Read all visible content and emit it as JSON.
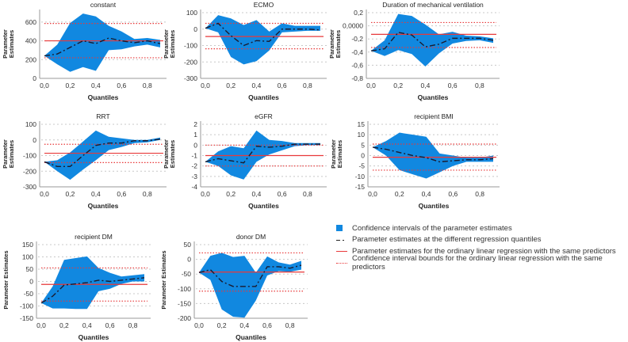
{
  "colors": {
    "ci_fill": "#1188e0",
    "estimate": "#1a1a2e",
    "ols": "#e8393a",
    "grid": "#c8c8c8"
  },
  "legend": [
    {
      "label": "Confidence intervals of the parameter estimates",
      "style": "fill"
    },
    {
      "label": "Parameter estimates at the different regression quantiles",
      "style": "dash"
    },
    {
      "label": "Parameter estimates for the ordinary linear regression with the same predictors",
      "style": "solid"
    },
    {
      "label": "Confidence interval bounds for the ordinary linear regression with the same predictors",
      "style": "dot"
    }
  ],
  "chart_data": [
    {
      "type": "area",
      "title": "constant",
      "xlabel": "Quantiles",
      "ylabel": "Parameter Estimates",
      "x": [
        0,
        0.1,
        0.2,
        0.3,
        0.4,
        0.5,
        0.6,
        0.7,
        0.8,
        0.9
      ],
      "xticks": [
        0,
        0.2,
        0.4,
        0.6,
        0.8
      ],
      "xtick_labels": [
        "0,0",
        "0,2",
        "0,4",
        "0,6",
        "0,8"
      ],
      "ylim": [
        0,
        700
      ],
      "yticks": [
        0,
        200,
        400,
        600
      ],
      "ytick_labels": [
        "0",
        "200",
        "400",
        "600"
      ],
      "estimate": [
        240,
        260,
        330,
        400,
        370,
        430,
        400,
        380,
        400,
        370
      ],
      "ci_upper": [
        240,
        360,
        590,
        690,
        660,
        560,
        500,
        420,
        430,
        410
      ],
      "ci_lower": [
        240,
        150,
        70,
        120,
        80,
        300,
        310,
        340,
        360,
        330
      ],
      "ols": 400,
      "ols_ci": [
        220,
        585
      ]
    },
    {
      "type": "area",
      "title": "ECMO",
      "xlabel": "Quantiles",
      "ylabel": "Parameter Estimates",
      "x": [
        0,
        0.1,
        0.2,
        0.3,
        0.4,
        0.5,
        0.6,
        0.7,
        0.8,
        0.9
      ],
      "xticks": [
        0,
        0.2,
        0.4,
        0.6,
        0.8
      ],
      "xtick_labels": [
        "0,0",
        "0,2",
        "0,4",
        "0,6",
        "0,8"
      ],
      "ylim": [
        -300,
        100
      ],
      "yticks": [
        -300,
        -200,
        -100,
        0,
        100
      ],
      "ytick_labels": [
        "-300",
        "-200",
        "-100",
        "0",
        "100"
      ],
      "estimate": [
        5,
        35,
        -40,
        -100,
        -70,
        -75,
        0,
        0,
        0,
        -5
      ],
      "ci_upper": [
        5,
        85,
        65,
        25,
        55,
        -15,
        35,
        20,
        20,
        20
      ],
      "ci_lower": [
        5,
        -20,
        -170,
        -215,
        -195,
        -130,
        -20,
        -15,
        -10,
        -10
      ],
      "ols": -45,
      "ols_ci": [
        -120,
        35
      ]
    },
    {
      "type": "area",
      "title": "Duration of mechanical ventilation",
      "xlabel": "Quantiles",
      "ylabel": "Parameter Estimates",
      "x": [
        0,
        0.1,
        0.2,
        0.3,
        0.4,
        0.5,
        0.6,
        0.7,
        0.8,
        0.9
      ],
      "xticks": [
        0,
        0.2,
        0.4,
        0.6,
        0.8
      ],
      "xtick_labels": [
        "0,0",
        "0,2",
        "0,4",
        "0,6",
        "0,8"
      ],
      "ylim": [
        -0.8,
        0.2
      ],
      "yticks": [
        -0.8,
        -0.6,
        -0.4,
        -0.2,
        0,
        0.2
      ],
      "ytick_labels": [
        "-0,8",
        "-0,6",
        "-0,4",
        "-0,2",
        "0,0000",
        "0,2"
      ],
      "estimate": [
        -0.38,
        -0.35,
        -0.1,
        -0.14,
        -0.32,
        -0.28,
        -0.19,
        -0.19,
        -0.19,
        -0.22
      ],
      "ci_upper": [
        -0.38,
        -0.22,
        0.18,
        0.15,
        0.02,
        -0.13,
        -0.09,
        -0.15,
        -0.16,
        -0.19
      ],
      "ci_lower": [
        -0.38,
        -0.46,
        -0.37,
        -0.43,
        -0.62,
        -0.42,
        -0.27,
        -0.23,
        -0.22,
        -0.26
      ],
      "ols": -0.13,
      "ols_ci": [
        -0.33,
        0.05
      ]
    },
    {
      "type": "area",
      "title": "RRT",
      "xlabel": "Quantiles",
      "ylabel": "Parameter Estimates",
      "x": [
        0,
        0.1,
        0.2,
        0.3,
        0.4,
        0.5,
        0.6,
        0.7,
        0.8,
        0.9
      ],
      "xticks": [
        0,
        0.2,
        0.4,
        0.6,
        0.8
      ],
      "xtick_labels": [
        "0,0",
        "0,2",
        "0,4",
        "0,6",
        "0,8"
      ],
      "ylim": [
        -300,
        100
      ],
      "yticks": [
        -300,
        -200,
        -100,
        0,
        100
      ],
      "ytick_labels": [
        "-300",
        "-200",
        "-100",
        "0",
        "100"
      ],
      "estimate": [
        -140,
        -170,
        -170,
        -100,
        -35,
        -20,
        -20,
        -5,
        -5,
        5
      ],
      "ci_upper": [
        -140,
        -130,
        -80,
        -10,
        60,
        20,
        10,
        0,
        0,
        15
      ],
      "ci_lower": [
        -140,
        -200,
        -255,
        -190,
        -130,
        -65,
        -45,
        -20,
        -15,
        0
      ],
      "ols": -85,
      "ols_ci": [
        -145,
        -28
      ]
    },
    {
      "type": "area",
      "title": "eGFR",
      "xlabel": "Quantiles",
      "ylabel": "Parameter Estimates",
      "x": [
        0,
        0.1,
        0.2,
        0.3,
        0.4,
        0.5,
        0.6,
        0.7,
        0.8,
        0.9
      ],
      "xticks": [
        0,
        0.2,
        0.4,
        0.6,
        0.8
      ],
      "xtick_labels": [
        "0,0",
        "0,2",
        "0,4",
        "0,6",
        "0,8"
      ],
      "ylim": [
        -4,
        2
      ],
      "yticks": [
        -4,
        -3,
        -2,
        -1,
        0,
        1,
        2
      ],
      "ytick_labels": [
        "-4",
        "-3",
        "-2",
        "-1",
        "0",
        "1",
        "2"
      ],
      "estimate": [
        -1.6,
        -1.3,
        -1.5,
        -1.7,
        -0.1,
        -0.2,
        -0.1,
        0.1,
        0.1,
        0.1
      ],
      "ci_upper": [
        -1.6,
        -0.6,
        -0.1,
        -0.3,
        1.4,
        0.5,
        0.4,
        0.2,
        0.2,
        0.2
      ],
      "ci_lower": [
        -1.6,
        -2.0,
        -2.9,
        -3.3,
        -1.6,
        -0.9,
        -0.5,
        -0.1,
        0,
        0
      ],
      "ols": -1,
      "ols_ci": [
        -2,
        0
      ]
    },
    {
      "type": "area",
      "title": "recipient BMI",
      "xlabel": "Quantiles",
      "ylabel": "Parameter Estimates",
      "x": [
        0,
        0.1,
        0.2,
        0.3,
        0.4,
        0.5,
        0.6,
        0.7,
        0.8,
        0.9
      ],
      "xticks": [
        0,
        0.2,
        0.4,
        0.6,
        0.8
      ],
      "xtick_labels": [
        "0,0",
        "0,2",
        "0,4",
        "0,6",
        "0,8"
      ],
      "ylim": [
        -15,
        15
      ],
      "yticks": [
        -15,
        -10,
        -5,
        0,
        5,
        10,
        15
      ],
      "ytick_labels": [
        "-15",
        "-10",
        "-5",
        "0",
        "5",
        "10",
        "15"
      ],
      "estimate": [
        4,
        3,
        1.5,
        0,
        -1,
        -3,
        -2.5,
        -2,
        -2,
        -1.5
      ],
      "ci_upper": [
        4,
        7,
        11,
        10,
        9,
        1,
        0,
        -1,
        -1,
        0
      ],
      "ci_lower": [
        4,
        0,
        -7,
        -9,
        -11,
        -8,
        -5,
        -3,
        -3,
        -3
      ],
      "ols": -0.8,
      "ols_ci": [
        -7,
        5.5
      ]
    },
    {
      "type": "area",
      "title": "recipient DM",
      "xlabel": "Quantiles",
      "ylabel": "Parameter Estimates",
      "x": [
        0,
        0.1,
        0.2,
        0.3,
        0.4,
        0.5,
        0.6,
        0.7,
        0.8,
        0.9
      ],
      "xticks": [
        0,
        0.2,
        0.4,
        0.6,
        0.8
      ],
      "xtick_labels": [
        "0,0",
        "0,2",
        "0,4",
        "0,6",
        "0,8"
      ],
      "ylim": [
        -150,
        150
      ],
      "yticks": [
        -150,
        -100,
        -50,
        0,
        50,
        100,
        150
      ],
      "ytick_labels": [
        "-150",
        "-100",
        "-50",
        "0",
        "50",
        "100",
        "150"
      ],
      "estimate": [
        -88,
        -60,
        -15,
        -10,
        -5,
        5,
        0,
        5,
        10,
        15
      ],
      "ci_upper": [
        -88,
        -20,
        88,
        95,
        102,
        55,
        35,
        20,
        25,
        30
      ],
      "ci_lower": [
        -88,
        -110,
        -110,
        -112,
        -112,
        -40,
        -30,
        -10,
        0,
        0
      ],
      "ols": -12,
      "ols_ci": [
        -80,
        55
      ]
    },
    {
      "type": "area",
      "title": "donor DM",
      "xlabel": "Quantiles",
      "ylabel": "Parameter Estimates",
      "x": [
        0,
        0.1,
        0.2,
        0.3,
        0.4,
        0.5,
        0.6,
        0.7,
        0.8,
        0.9
      ],
      "xticks": [
        0,
        0.2,
        0.4,
        0.6,
        0.8
      ],
      "xtick_labels": [
        "0,0",
        "0,2",
        "0,4",
        "0,6",
        "0,8"
      ],
      "ylim": [
        -200,
        50
      ],
      "yticks": [
        -200,
        -150,
        -100,
        -50,
        0,
        50
      ],
      "ytick_labels": [
        "-200",
        "-150",
        "-100",
        "-50",
        "0",
        "50"
      ],
      "estimate": [
        -45,
        -35,
        -75,
        -92,
        -92,
        -92,
        -25,
        -25,
        -30,
        -20
      ],
      "ci_upper": [
        -45,
        12,
        22,
        8,
        12,
        -45,
        10,
        -10,
        -18,
        -5
      ],
      "ci_lower": [
        -45,
        -70,
        -170,
        -195,
        -198,
        -140,
        -55,
        -40,
        -42,
        -35
      ],
      "ols": -43,
      "ols_ci": [
        -108,
        22
      ]
    }
  ]
}
